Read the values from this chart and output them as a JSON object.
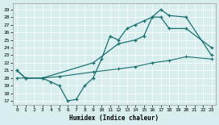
{
  "xlabel": "Humidex (Indice chaleur)",
  "bg_color": "#d8eeee",
  "line_color": "#1a7070",
  "xlim": [
    -0.5,
    23.5
  ],
  "ylim": [
    16.5,
    29.8
  ],
  "yticks": [
    17,
    18,
    19,
    20,
    21,
    22,
    23,
    24,
    25,
    26,
    27,
    28,
    29
  ],
  "xticks": [
    0,
    1,
    2,
    3,
    4,
    5,
    6,
    7,
    8,
    9,
    10,
    11,
    12,
    13,
    14,
    15,
    16,
    17,
    18,
    19,
    20,
    21,
    22,
    23
  ],
  "line1_x": [
    0,
    1,
    3,
    4,
    5,
    6,
    7,
    8,
    9,
    10,
    11,
    12,
    13,
    14,
    15,
    16,
    17,
    18,
    20,
    23
  ],
  "line1_y": [
    21,
    20,
    20,
    19.5,
    19,
    17,
    17.2,
    19,
    20,
    22.5,
    25.5,
    25,
    26.5,
    27,
    27.5,
    28,
    29,
    28.2,
    28,
    23
  ],
  "line2_x": [
    0,
    1,
    3,
    9,
    12,
    14,
    15,
    16,
    17,
    18,
    20,
    23
  ],
  "line2_y": [
    21,
    20,
    20,
    22,
    24.5,
    25,
    25.5,
    28,
    28,
    26.5,
    26.5,
    24
  ],
  "line3_x": [
    0,
    1,
    3,
    5,
    9,
    12,
    14,
    16,
    18,
    20,
    23
  ],
  "line3_y": [
    20,
    20,
    20,
    20.2,
    20.8,
    21.2,
    21.5,
    22,
    22.3,
    22.8,
    22.5
  ]
}
